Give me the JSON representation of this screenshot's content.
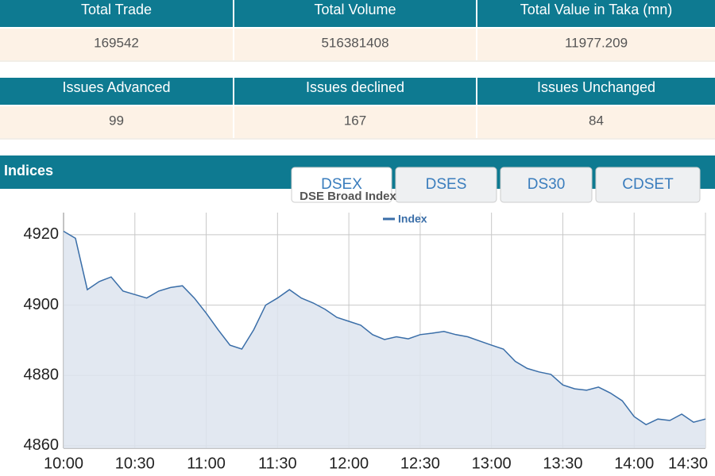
{
  "summary_tables": [
    {
      "headers": [
        "Total Trade",
        "Total Volume",
        "Total Value in Taka (mn)"
      ],
      "values": [
        "169542",
        "516381408",
        "11977.209"
      ]
    },
    {
      "headers": [
        "Issues Advanced",
        "Issues declined",
        "Issues Unchanged"
      ],
      "values": [
        "99",
        "167",
        "84"
      ]
    }
  ],
  "indices": {
    "title": "Indices",
    "tabs": [
      "DSEX",
      "DSES",
      "DS30",
      "CDSET"
    ]
  },
  "chart_data": {
    "type": "line",
    "title": "DSE Broad Index",
    "x": [
      "10:00",
      "10:05",
      "10:10",
      "10:15",
      "10:20",
      "10:25",
      "10:30",
      "10:35",
      "10:40",
      "10:45",
      "10:50",
      "10:55",
      "11:00",
      "11:05",
      "11:10",
      "11:15",
      "11:20",
      "11:25",
      "11:30",
      "11:35",
      "11:40",
      "11:45",
      "11:50",
      "11:55",
      "12:00",
      "12:05",
      "12:10",
      "12:15",
      "12:20",
      "12:25",
      "12:30",
      "12:35",
      "12:40",
      "12:45",
      "12:50",
      "12:55",
      "13:00",
      "13:05",
      "13:10",
      "13:15",
      "13:20",
      "13:25",
      "13:30",
      "13:35",
      "13:40",
      "13:45",
      "13:50",
      "13:55",
      "14:00",
      "14:05",
      "14:10",
      "14:15",
      "14:20",
      "14:25",
      "14:30"
    ],
    "series": [
      {
        "name": "Index",
        "color": "#3a6ea8",
        "values": [
          4921,
          4919,
          4904.4,
          4906.7,
          4908,
          4904,
          4903,
          4902,
          4904,
          4905,
          4905.5,
          4902,
          4897.7,
          4893,
          4888.6,
          4887.5,
          4893,
          4900,
          4902,
          4904.4,
          4902,
          4900.6,
          4898.8,
          4896.5,
          4895.4,
          4894.3,
          4891.6,
          4890.2,
          4891,
          4890.4,
          4891.6,
          4892,
          4892.5,
          4891.6,
          4891,
          4889.8,
          4888.6,
          4887.5,
          4884,
          4882,
          4881,
          4880.3,
          4877.3,
          4876.2,
          4875.8,
          4876.7,
          4875,
          4872.8,
          4868.3,
          4866,
          4867.6,
          4867.2,
          4869,
          4866.7,
          4867.6
        ]
      }
    ],
    "xlim": [
      "10:00",
      "14:30"
    ],
    "xticks": [
      "10:00",
      "10:30",
      "11:00",
      "11:30",
      "12:00",
      "12:30",
      "13:00",
      "13:30",
      "14:00",
      "14:30"
    ],
    "ylim": [
      4859.3,
      4926.3
    ],
    "yticks": [
      4860,
      4880,
      4900,
      4920
    ],
    "grid": true,
    "fill": true
  }
}
